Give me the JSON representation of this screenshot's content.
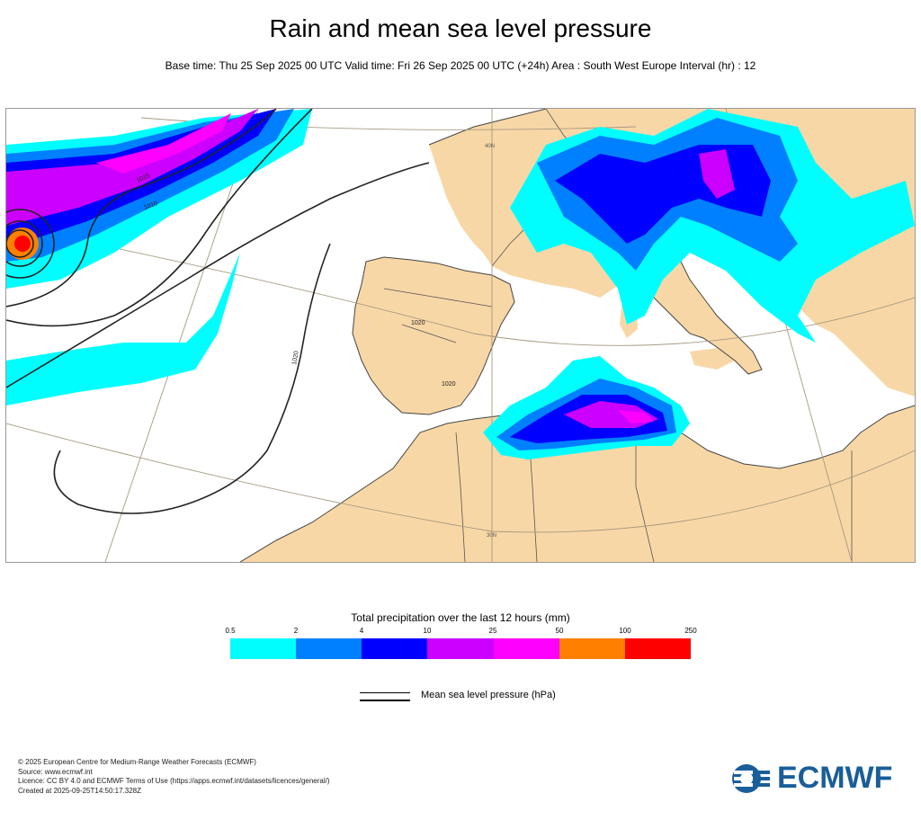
{
  "title": "Rain and mean sea level pressure",
  "subtitle": "Base time: Thu 25 Sep 2025 00 UTC Valid time: Fri 26 Sep 2025 00 UTC (+24h) Area : South West Europe Interval (hr) : 12",
  "map": {
    "isobar_labels": [
      "1015",
      "1010",
      "1020",
      "1020",
      "1020"
    ],
    "graticule_labels": [
      "40N",
      "30N"
    ],
    "colors": {
      "land": "#f8d7a6",
      "sea": "#ffffff",
      "border": "#555555",
      "isobar": "#222222",
      "graticule": "#a59a80"
    }
  },
  "legend": {
    "title": "Total precipitation over the last 12 hours (mm)",
    "ticks": [
      "0.5",
      "2",
      "4",
      "10",
      "25",
      "50",
      "100",
      "250"
    ],
    "colors": [
      "#00fefe",
      "#0080ff",
      "#0000fe",
      "#cc00ff",
      "#fe00fe",
      "#ff8000",
      "#ff0000"
    ]
  },
  "pressure_key": {
    "label": "Mean sea level pressure (hPa)"
  },
  "footer": {
    "copyright": "© 2025 European Centre for Medium-Range Weather Forecasts (ECMWF)",
    "source": "Source: www.ecmwf.int",
    "licence": "Licence: CC BY 4.0 and ECMWF Terms of Use (https://apps.ecmwf.int/datasets/licences/general/)",
    "created": "Created at 2025-09-25T14:50:17.328Z"
  },
  "logo": {
    "text": "ECMWF",
    "icon": "ecmwf-logo-icon",
    "color": "#1a5e99"
  }
}
